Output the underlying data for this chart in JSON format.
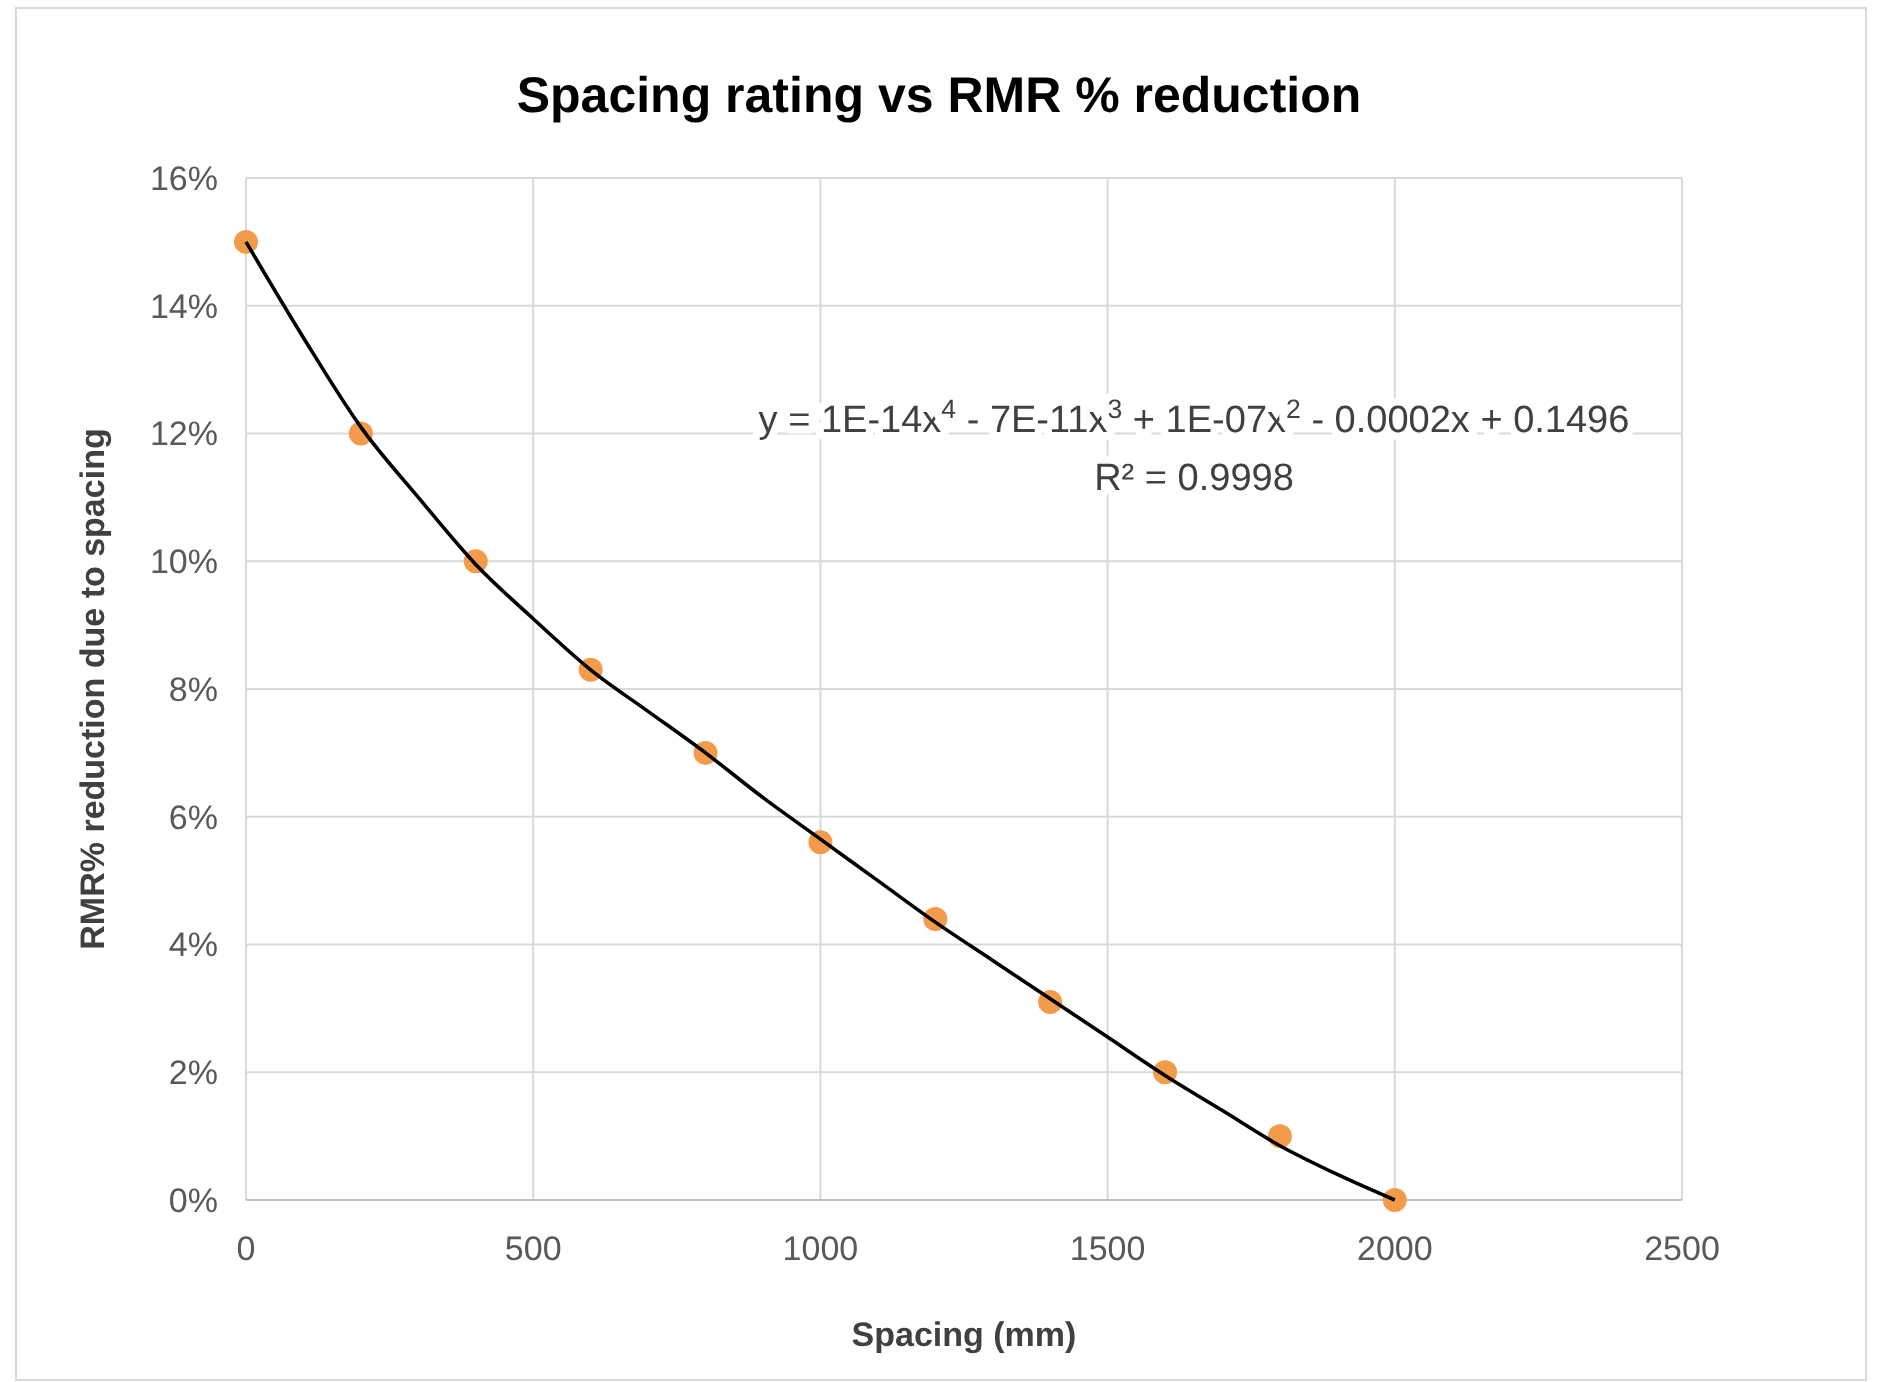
{
  "chart_data": {
    "type": "scatter",
    "title": "Spacing rating vs RMR % reduction",
    "xlabel": "Spacing (mm)",
    "ylabel": "RMR% reduction due to spacing",
    "series": [
      {
        "color": "#f29b4b",
        "marker": "circle",
        "x": [
          0,
          200,
          400,
          600,
          800,
          1000,
          1200,
          1400,
          1600,
          1800,
          2000
        ],
        "values": [
          0.15,
          0.12,
          0.1,
          0.083,
          0.07,
          0.056,
          0.044,
          0.031,
          0.02,
          0.01,
          0
        ]
      },
      {
        "type": "line",
        "color": "#000000",
        "marker": "none",
        "line_style": "solid",
        "x": [
          0,
          100,
          200,
          300,
          400,
          500,
          600,
          700,
          800,
          900,
          1000,
          1100,
          1200,
          1300,
          1400,
          1500,
          1600,
          1700,
          1800,
          1900,
          2000
        ],
        "values": [
          0.15,
          0.135,
          0.121,
          0.11,
          0.0995,
          0.091,
          0.083,
          0.0765,
          0.07,
          0.063,
          0.0565,
          0.05,
          0.0435,
          0.0375,
          0.0315,
          0.0255,
          0.0195,
          0.014,
          0.0085,
          0.004,
          0
        ]
      }
    ],
    "xlim": [
      0,
      2500
    ],
    "xticks": [
      0,
      500,
      1000,
      1500,
      2000,
      2500
    ],
    "ylim": [
      0,
      0.16
    ],
    "yticks": [
      {
        "value": 0,
        "label": "0%"
      },
      {
        "value": 0.02,
        "label": "2%"
      },
      {
        "value": 0.04,
        "label": "4%"
      },
      {
        "value": 0.06,
        "label": "6%"
      },
      {
        "value": 0.08,
        "label": "8%"
      },
      {
        "value": 0.1,
        "label": "10%"
      },
      {
        "value": 0.12,
        "label": "12%"
      },
      {
        "value": 0.14,
        "label": "14%"
      },
      {
        "value": 0.16,
        "label": "16%"
      }
    ],
    "grid": true,
    "annotations": [
      "y = 1E-14x$^{4}$ - 7E-11x$^{3}$ + 1E-07x$^{2}$ - 0.0002x + 0.1496",
      "R² = 0.9998"
    ]
  }
}
